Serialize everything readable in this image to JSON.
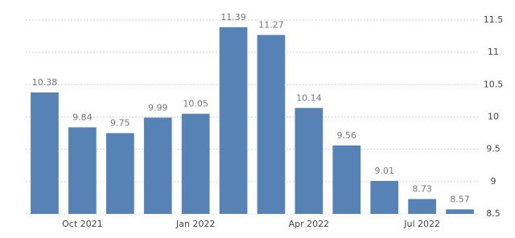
{
  "chart_data": {
    "type": "bar",
    "categories": [
      null,
      "Oct 2021",
      null,
      null,
      "Jan 2022",
      null,
      null,
      "Apr 2022",
      null,
      null,
      "Jul 2022",
      null
    ],
    "values": [
      10.38,
      9.84,
      9.75,
      9.99,
      10.05,
      11.39,
      11.27,
      10.14,
      9.56,
      9.01,
      8.73,
      8.57
    ],
    "color": "#5782b5",
    "ylim": [
      8.5,
      11.5
    ],
    "yticks": [
      8.5,
      9,
      9.5,
      10,
      10.5,
      11,
      11.5
    ],
    "grid": true,
    "y_axis_side": "right"
  }
}
